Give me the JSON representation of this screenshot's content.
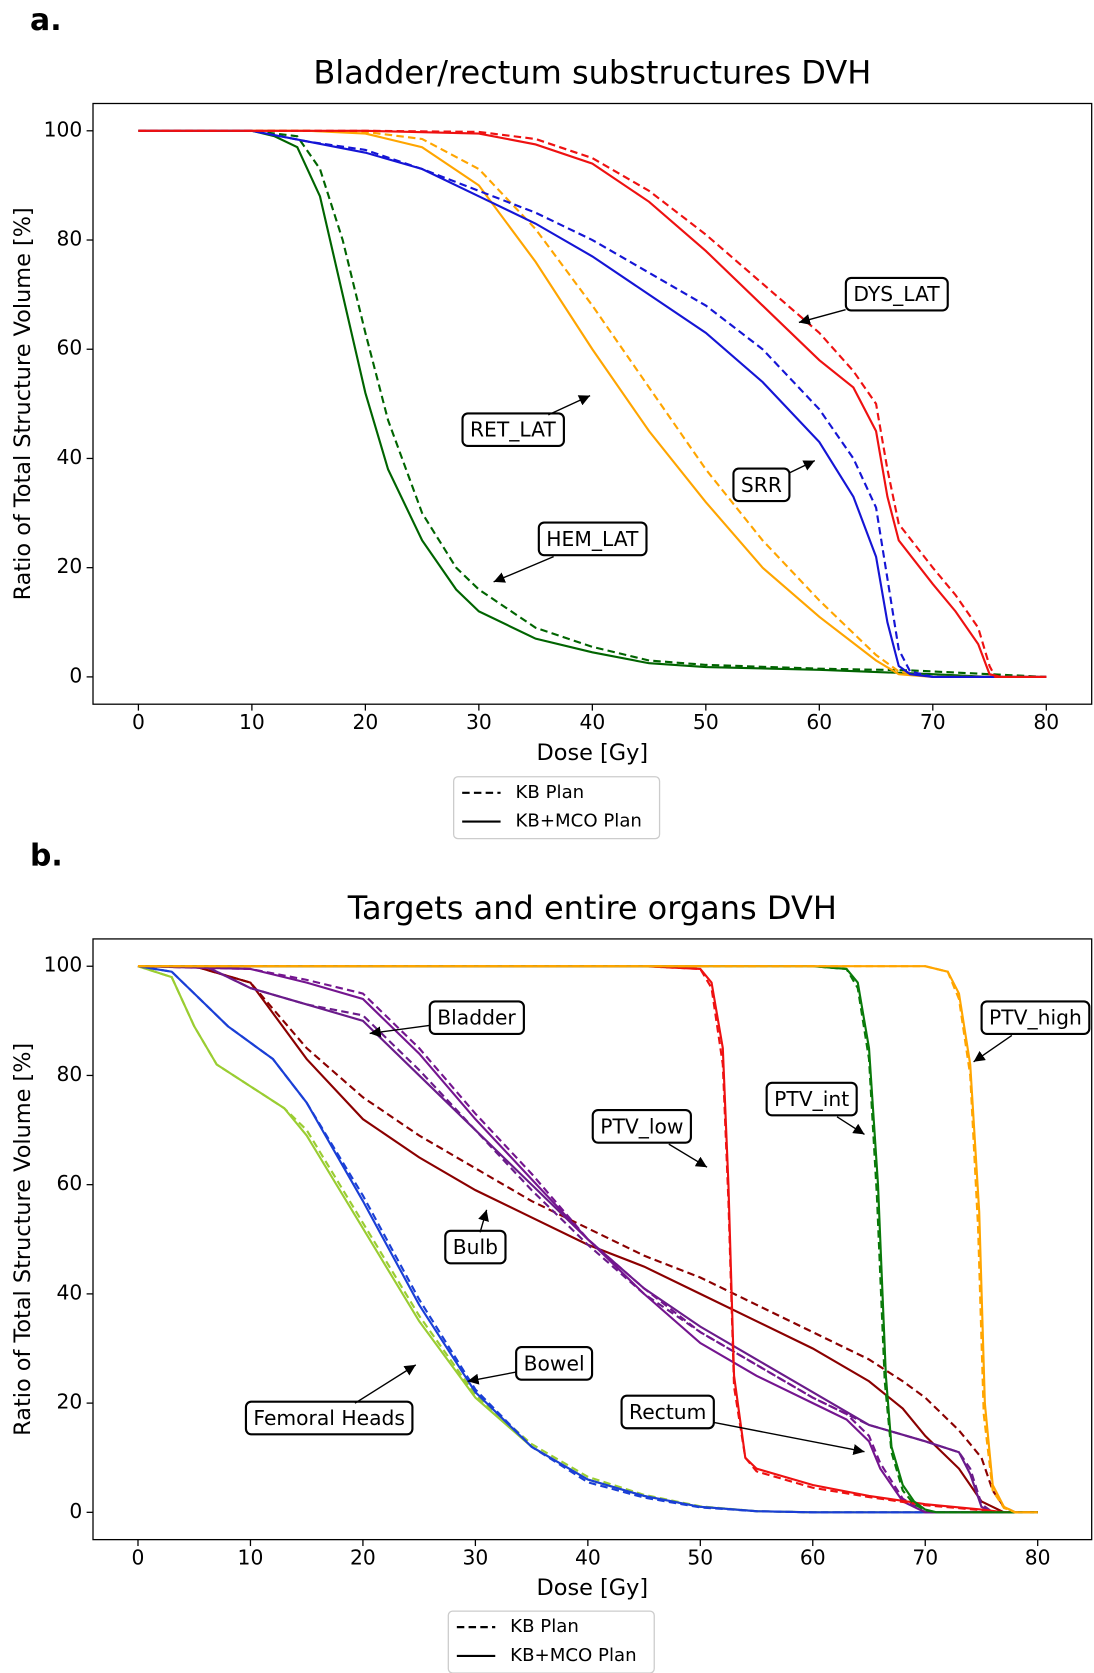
{
  "chart_data": [
    {
      "type": "line",
      "panel_label": "a.",
      "title": "Bladder/rectum substructures DVH",
      "xlabel": "Dose [Gy]",
      "ylabel": "Ratio of Total Structure Volume [%]",
      "xlim": [
        -4,
        84
      ],
      "ylim": [
        -5,
        105
      ],
      "xticks": [
        0,
        10,
        20,
        30,
        40,
        50,
        60,
        70,
        80
      ],
      "yticks": [
        0,
        20,
        40,
        60,
        80,
        100
      ],
      "legend": [
        {
          "label": "KB Plan",
          "dash": true
        },
        {
          "label": "KB+MCO Plan",
          "dash": false
        }
      ],
      "series": [
        {
          "color": "#006400",
          "dash": false,
          "x": [
            0,
            10,
            12,
            14,
            16,
            18,
            20,
            22,
            25,
            28,
            30,
            35,
            40,
            45,
            50,
            60,
            70,
            75,
            80
          ],
          "values": [
            100,
            100,
            99,
            97,
            88,
            70,
            52,
            38,
            25,
            16,
            12,
            7,
            4.5,
            2.5,
            1.8,
            1.3,
            0.5,
            0,
            0
          ]
        },
        {
          "color": "#006400",
          "dash": true,
          "x": [
            0,
            10,
            14,
            16,
            18,
            20,
            22,
            25,
            28,
            30,
            35,
            40,
            45,
            50,
            60,
            68,
            75,
            80
          ],
          "values": [
            100,
            100,
            99,
            93,
            80,
            63,
            47,
            30,
            20,
            16,
            9,
            5.5,
            3,
            2.2,
            1.5,
            1.2,
            0.5,
            0
          ]
        },
        {
          "color": "#ffa500",
          "dash": false,
          "x": [
            0,
            15,
            20,
            25,
            30,
            35,
            40,
            45,
            50,
            55,
            60,
            65,
            67,
            70,
            80
          ],
          "values": [
            100,
            100,
            99.5,
            97,
            90,
            76,
            60,
            45,
            32,
            20,
            11,
            3,
            0.5,
            0,
            0
          ]
        },
        {
          "color": "#ffa500",
          "dash": true,
          "x": [
            0,
            15,
            20,
            25,
            30,
            35,
            40,
            45,
            50,
            55,
            60,
            65,
            67,
            70,
            80
          ],
          "values": [
            100,
            100,
            99.8,
            98.5,
            93,
            82,
            68,
            53,
            38,
            25,
            14,
            4,
            1,
            0,
            0
          ]
        },
        {
          "color": "#1515d5",
          "dash": false,
          "x": [
            0,
            10,
            15,
            20,
            25,
            30,
            35,
            40,
            45,
            50,
            55,
            60,
            63,
            65,
            66,
            67,
            68,
            70,
            80
          ],
          "values": [
            100,
            100,
            98,
            96,
            93,
            88,
            83,
            77,
            70,
            63,
            54,
            43,
            33,
            22,
            10,
            2,
            0.5,
            0,
            0
          ]
        },
        {
          "color": "#1515d5",
          "dash": true,
          "x": [
            0,
            10,
            15,
            20,
            25,
            30,
            35,
            40,
            45,
            50,
            55,
            60,
            63,
            65,
            66,
            67,
            68,
            70,
            80
          ],
          "values": [
            100,
            100,
            98,
            96.5,
            93,
            89,
            85,
            80,
            74,
            68,
            60,
            49,
            40,
            31,
            18,
            5,
            1,
            0,
            0
          ]
        },
        {
          "color": "#ee1111",
          "dash": false,
          "x": [
            0,
            20,
            30,
            35,
            40,
            45,
            50,
            55,
            60,
            63,
            65,
            66,
            67,
            70,
            72,
            74,
            75,
            76,
            80
          ],
          "values": [
            100,
            100,
            99.5,
            97.5,
            94,
            87,
            78,
            68,
            58,
            53,
            45,
            33,
            25,
            17,
            12,
            6,
            0.5,
            0,
            0
          ]
        },
        {
          "color": "#ee1111",
          "dash": true,
          "x": [
            0,
            20,
            30,
            35,
            40,
            45,
            50,
            55,
            60,
            63,
            65,
            66,
            67,
            70,
            72,
            74,
            75,
            75.5,
            80
          ],
          "values": [
            100,
            100,
            99.8,
            98.5,
            95,
            89,
            81,
            72,
            63,
            56,
            50,
            38,
            28,
            20,
            15,
            9,
            2,
            0,
            0
          ]
        }
      ],
      "annotations": [
        {
          "text": "DYS_LAT"
        },
        {
          "text": "RET_LAT"
        },
        {
          "text": "SRR"
        },
        {
          "text": "HEM_LAT"
        }
      ]
    },
    {
      "type": "line",
      "panel_label": "b.",
      "title": "Targets and entire organs DVH",
      "xlabel": "Dose [Gy]",
      "ylabel": "Ratio of Total Structure Volume [%]",
      "xlim": [
        -4,
        84.8
      ],
      "ylim": [
        -5,
        105
      ],
      "xticks": [
        0,
        10,
        20,
        30,
        40,
        50,
        60,
        70,
        80
      ],
      "yticks": [
        0,
        20,
        40,
        60,
        80,
        100
      ],
      "legend": [
        {
          "label": "KB Plan",
          "dash": true
        },
        {
          "label": "KB+MCO Plan",
          "dash": false
        }
      ],
      "series": [
        {
          "color": "#9acd32",
          "dash": false,
          "x": [
            0,
            3,
            5,
            7,
            10,
            13,
            15,
            20,
            25,
            30,
            35,
            40,
            45,
            50,
            55,
            60,
            80
          ],
          "values": [
            100,
            98,
            89,
            82,
            78,
            74,
            69,
            52,
            35,
            21,
            12,
            6,
            3,
            1,
            0.2,
            0,
            0
          ]
        },
        {
          "color": "#9acd32",
          "dash": true,
          "x": [
            0,
            3,
            5,
            7,
            10,
            13,
            15,
            20,
            25,
            30,
            35,
            40,
            45,
            50,
            55,
            60,
            80
          ],
          "values": [
            100,
            98,
            89,
            82,
            78,
            74,
            70,
            53,
            36,
            21.5,
            12.5,
            6.5,
            3.2,
            1.1,
            0.2,
            0,
            0
          ]
        },
        {
          "color": "#1a3fd6",
          "dash": false,
          "x": [
            0,
            3,
            5,
            8,
            12,
            15,
            20,
            25,
            30,
            35,
            40,
            45,
            50,
            55,
            60,
            80
          ],
          "values": [
            100,
            99,
            95,
            89,
            83,
            75,
            57,
            38,
            22,
            12,
            6,
            3,
            1,
            0.2,
            0,
            0
          ]
        },
        {
          "color": "#1a3fd6",
          "dash": true,
          "x": [
            0,
            3,
            5,
            8,
            12,
            15,
            20,
            25,
            30,
            35,
            40,
            45,
            50,
            55,
            60,
            80
          ],
          "values": [
            100,
            99,
            95,
            89,
            83,
            75,
            58,
            39,
            22.5,
            12,
            5.5,
            2.7,
            0.9,
            0.2,
            0,
            0
          ]
        },
        {
          "color": "#8b0000",
          "dash": false,
          "x": [
            0,
            5,
            10,
            15,
            20,
            25,
            30,
            35,
            40,
            45,
            50,
            55,
            60,
            65,
            68,
            70,
            73,
            75,
            77,
            80
          ],
          "values": [
            100,
            100,
            97,
            83,
            72,
            65,
            59,
            54,
            49,
            45,
            40,
            35,
            30,
            24,
            19,
            14,
            8,
            2,
            0,
            0
          ]
        },
        {
          "color": "#8b0000",
          "dash": true,
          "x": [
            0,
            5,
            10,
            15,
            20,
            25,
            30,
            35,
            40,
            45,
            50,
            55,
            60,
            65,
            68,
            70,
            73,
            75,
            76,
            77,
            78,
            80
          ],
          "values": [
            100,
            100,
            97,
            85,
            76,
            69,
            63,
            57,
            52,
            47,
            43,
            38,
            33,
            28,
            24,
            21,
            15,
            10,
            4,
            1,
            0,
            0
          ]
        },
        {
          "color": "#6a1b8a",
          "dash": false,
          "x": [
            0,
            6,
            10,
            15,
            20,
            25,
            30,
            35,
            40,
            45,
            50,
            55,
            60,
            65,
            70,
            73,
            74,
            75,
            76,
            80
          ],
          "values": [
            100,
            100,
            96,
            93,
            90,
            80,
            70,
            60,
            50,
            41,
            34,
            28,
            22,
            16,
            13,
            11,
            7,
            1,
            0,
            0
          ]
        },
        {
          "color": "#6a1b8a",
          "dash": true,
          "x": [
            0,
            6,
            10,
            15,
            20,
            25,
            30,
            35,
            40,
            45,
            50,
            55,
            60,
            65,
            70,
            73,
            74,
            75,
            76,
            80
          ],
          "values": [
            100,
            100,
            96,
            93,
            91,
            81,
            70,
            59,
            49,
            40,
            33,
            27,
            21,
            16,
            13,
            11,
            8,
            1.5,
            0,
            0
          ]
        },
        {
          "color": "#74158f",
          "dash": false,
          "x": [
            0,
            10,
            15,
            20,
            25,
            30,
            35,
            40,
            45,
            50,
            55,
            60,
            63,
            65,
            66,
            68,
            70,
            80
          ],
          "values": [
            100,
            99.5,
            97,
            94,
            84,
            72,
            61,
            50,
            40,
            31,
            25,
            20,
            17,
            13,
            8,
            2,
            0,
            0
          ]
        },
        {
          "color": "#74158f",
          "dash": true,
          "x": [
            0,
            10,
            15,
            20,
            25,
            30,
            35,
            40,
            45,
            50,
            55,
            60,
            63,
            65,
            66,
            68,
            70,
            80
          ],
          "values": [
            100,
            99.5,
            97.5,
            95,
            85,
            73,
            62,
            50,
            41,
            33,
            27,
            21,
            18,
            14,
            9,
            2.5,
            0,
            0
          ]
        },
        {
          "color": "#ee1111",
          "dash": false,
          "x": [
            0,
            45,
            50,
            51,
            52,
            52.5,
            53,
            54,
            55,
            60,
            65,
            70,
            75,
            77,
            80
          ],
          "values": [
            100,
            100,
            99.5,
            97,
            85,
            60,
            25,
            10,
            8,
            5,
            3,
            1.5,
            0.5,
            0,
            0
          ]
        },
        {
          "color": "#ee1111",
          "dash": true,
          "x": [
            0,
            45,
            50,
            51,
            52,
            52.5,
            53,
            54,
            55,
            60,
            65,
            70,
            75,
            77,
            80
          ],
          "values": [
            100,
            100,
            99.5,
            96,
            82,
            57,
            23,
            10,
            7.5,
            4.5,
            2.8,
            1.3,
            0.4,
            0,
            0
          ]
        },
        {
          "color": "#0a7a0a",
          "dash": false,
          "x": [
            0,
            60,
            63,
            64,
            65,
            65.8,
            66.5,
            67,
            68,
            69,
            70,
            71,
            80
          ],
          "values": [
            100,
            100,
            99.5,
            97,
            85,
            60,
            25,
            12,
            5,
            2,
            0.5,
            0,
            0
          ]
        },
        {
          "color": "#0a7a0a",
          "dash": true,
          "x": [
            0,
            60,
            63,
            64,
            65,
            65.7,
            66.4,
            67,
            68,
            69,
            70,
            71,
            80
          ],
          "values": [
            100,
            100,
            99.5,
            96,
            83,
            58,
            24,
            11,
            4,
            1.5,
            0.4,
            0,
            0
          ]
        },
        {
          "color": "#ffa500",
          "dash": false,
          "x": [
            0,
            70,
            72,
            73,
            74,
            74.8,
            75.3,
            76,
            77,
            78,
            80
          ],
          "values": [
            100,
            100,
            99,
            95,
            82,
            55,
            20,
            5,
            1,
            0,
            0
          ]
        },
        {
          "color": "#ffa500",
          "dash": true,
          "x": [
            0,
            70,
            72,
            73,
            74,
            74.7,
            75.2,
            76,
            77,
            78,
            80
          ],
          "values": [
            100,
            100,
            99,
            94,
            80,
            52,
            18,
            4,
            0.8,
            0,
            0
          ]
        }
      ],
      "annotations": [
        {
          "text": "Bladder"
        },
        {
          "text": "PTV_high"
        },
        {
          "text": "PTV_int"
        },
        {
          "text": "PTV_low"
        },
        {
          "text": "Bulb"
        },
        {
          "text": "Bowel"
        },
        {
          "text": "Femoral Heads"
        },
        {
          "text": "Rectum"
        }
      ]
    }
  ]
}
